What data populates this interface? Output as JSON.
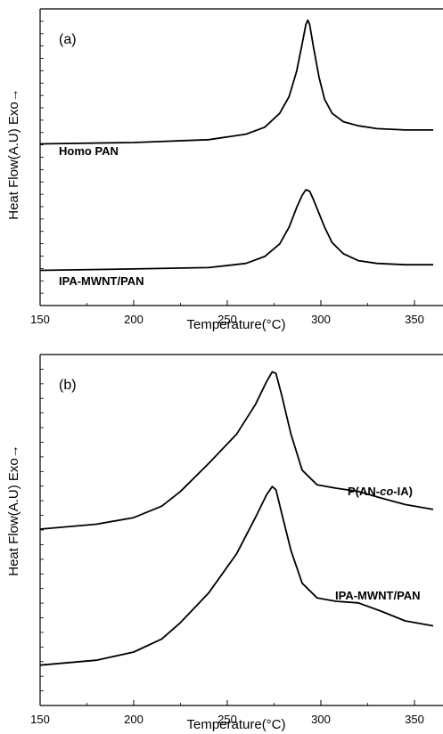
{
  "chart_data": [
    {
      "type": "line",
      "panel_label": "(a)",
      "xlabel": "Temperature(°C)",
      "ylabel": "Heat Flow(A.U) Exo→",
      "xlim": [
        150,
        360
      ],
      "xticks": [
        150,
        200,
        250,
        300,
        350
      ],
      "xtick_labels": [
        "150",
        "200",
        "250",
        "300",
        "350"
      ],
      "y_ticks_labeled": false,
      "ylim": [
        0,
        10
      ],
      "series": [
        {
          "name": "Homo PAN",
          "x": [
            150,
            200,
            240,
            260,
            270,
            278,
            283,
            287,
            290,
            292,
            293,
            294,
            296,
            299,
            302,
            306,
            312,
            320,
            330,
            345,
            360
          ],
          "y": [
            5.4,
            5.45,
            5.55,
            5.75,
            6.0,
            6.5,
            7.1,
            8.0,
            9.0,
            9.7,
            9.85,
            9.7,
            8.9,
            7.8,
            7.0,
            6.5,
            6.2,
            6.05,
            5.95,
            5.9,
            5.9
          ]
        },
        {
          "name": "IPA-MWNT/PAN",
          "x": [
            150,
            200,
            240,
            260,
            270,
            278,
            283,
            287,
            290,
            292,
            294,
            296,
            299,
            302,
            306,
            312,
            320,
            330,
            345,
            360
          ],
          "y": [
            0.85,
            0.9,
            0.95,
            1.1,
            1.35,
            1.8,
            2.4,
            3.1,
            3.55,
            3.75,
            3.7,
            3.4,
            2.9,
            2.4,
            1.85,
            1.45,
            1.2,
            1.1,
            1.05,
            1.05
          ]
        }
      ]
    },
    {
      "type": "line",
      "panel_label": "(b)",
      "xlabel": "Temperature(°C)",
      "ylabel": "Heat Flow(A.U) Exo→",
      "xlim": [
        150,
        360
      ],
      "xticks": [
        150,
        200,
        250,
        300,
        350
      ],
      "xtick_labels": [
        "150",
        "200",
        "250",
        "300",
        "350"
      ],
      "y_ticks_labeled": false,
      "ylim": [
        0,
        10
      ],
      "series": [
        {
          "name": "P(AN-co-IA)",
          "x": [
            150,
            180,
            200,
            215,
            225,
            240,
            255,
            265,
            271,
            274,
            276,
            279,
            284,
            290,
            298,
            308,
            320,
            332,
            345,
            360
          ],
          "y": [
            5.0,
            5.15,
            5.35,
            5.7,
            6.15,
            7.0,
            7.9,
            8.8,
            9.5,
            9.8,
            9.75,
            9.1,
            7.9,
            6.8,
            6.35,
            6.25,
            6.15,
            5.95,
            5.75,
            5.6
          ]
        },
        {
          "name": "IPA-MWNT/PAN",
          "x": [
            150,
            180,
            200,
            215,
            225,
            240,
            255,
            265,
            271,
            274,
            276,
            279,
            284,
            290,
            298,
            308,
            320,
            332,
            345,
            360
          ],
          "y": [
            0.85,
            1.0,
            1.25,
            1.65,
            2.15,
            3.05,
            4.25,
            5.35,
            6.05,
            6.3,
            6.2,
            5.5,
            4.35,
            3.35,
            2.9,
            2.8,
            2.75,
            2.5,
            2.2,
            2.05
          ]
        }
      ]
    }
  ],
  "labels": {
    "a_series_1": "Homo PAN",
    "a_series_2": "IPA-MWNT/PAN",
    "b_series_1": "P(AN-co-IA)",
    "b_series_2": "IPA-MWNT/PAN"
  }
}
